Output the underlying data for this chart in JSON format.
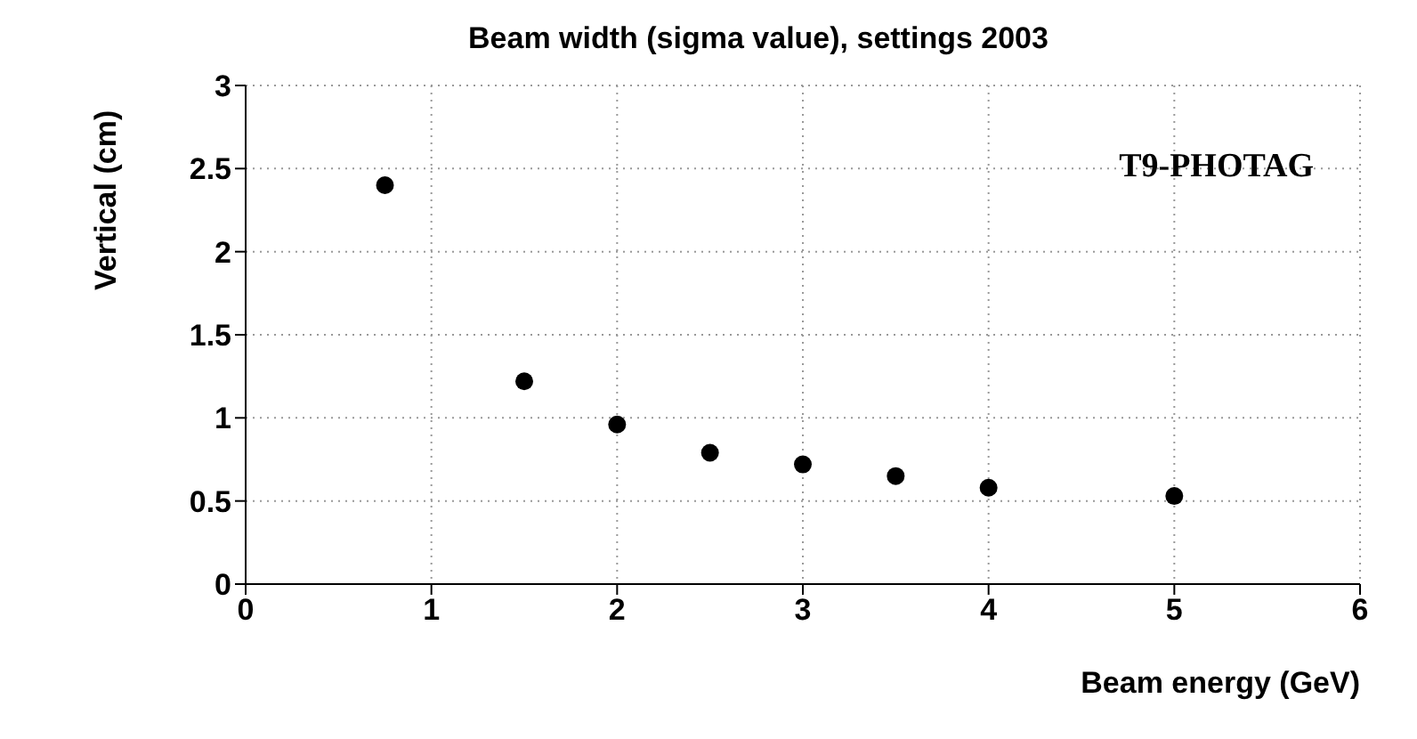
{
  "chart_data": {
    "type": "scatter",
    "title": "Beam width (sigma value), settings 2003",
    "xlabel": "Beam energy (GeV)",
    "ylabel": "Vertical (cm)",
    "annotations": [
      "T9-PHOTAG"
    ],
    "x": [
      0.75,
      1.5,
      2,
      2.5,
      3,
      3.5,
      4,
      5
    ],
    "series": [
      {
        "color": "#000000",
        "values": [
          2.4,
          1.22,
          0.96,
          0.79,
          0.72,
          0.65,
          0.58,
          0.53
        ]
      }
    ],
    "xlim": [
      0,
      6
    ],
    "xticks": [
      0,
      1,
      2,
      3,
      4,
      5,
      6
    ],
    "ylim": [
      0,
      3
    ],
    "yticks": [
      0,
      0.5,
      1,
      1.5,
      2,
      2.5,
      3
    ],
    "grid": true,
    "marker": "circle"
  }
}
